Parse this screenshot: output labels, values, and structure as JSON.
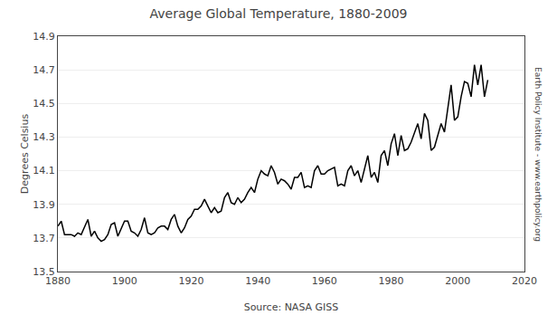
{
  "chart_data": {
    "type": "line",
    "title": "Average Global Temperature, 1880-2009",
    "xlabel": "Source: NASA GISS",
    "ylabel": "Degrees Celsius",
    "annotations": [
      "Earth Policy Institute - www.earthpolicy.org"
    ],
    "color": "#000000",
    "grid": "y",
    "xlim": [
      1880,
      2020
    ],
    "ylim": [
      13.5,
      14.9
    ],
    "xticks": [
      1880,
      1900,
      1920,
      1940,
      1960,
      1980,
      2000,
      2020
    ],
    "yticks": [
      13.5,
      13.7,
      13.9,
      14.1,
      14.3,
      14.5,
      14.7,
      14.9
    ],
    "x": [
      1880,
      1881,
      1882,
      1883,
      1884,
      1885,
      1886,
      1887,
      1888,
      1889,
      1890,
      1891,
      1892,
      1893,
      1894,
      1895,
      1896,
      1897,
      1898,
      1899,
      1900,
      1901,
      1902,
      1903,
      1904,
      1905,
      1906,
      1907,
      1908,
      1909,
      1910,
      1911,
      1912,
      1913,
      1914,
      1915,
      1916,
      1917,
      1918,
      1919,
      1920,
      1921,
      1922,
      1923,
      1924,
      1925,
      1926,
      1927,
      1928,
      1929,
      1930,
      1931,
      1932,
      1933,
      1934,
      1935,
      1936,
      1937,
      1938,
      1939,
      1940,
      1941,
      1942,
      1943,
      1944,
      1945,
      1946,
      1947,
      1948,
      1949,
      1950,
      1951,
      1952,
      1953,
      1954,
      1955,
      1956,
      1957,
      1958,
      1959,
      1960,
      1961,
      1962,
      1963,
      1964,
      1965,
      1966,
      1967,
      1968,
      1969,
      1970,
      1971,
      1972,
      1973,
      1974,
      1975,
      1976,
      1977,
      1978,
      1979,
      1980,
      1981,
      1982,
      1983,
      1984,
      1985,
      1986,
      1987,
      1988,
      1989,
      1990,
      1991,
      1992,
      1993,
      1994,
      1995,
      1996,
      1997,
      1998,
      1999,
      2000,
      2001,
      2002,
      2003,
      2004,
      2005,
      2006,
      2007,
      2008,
      2009
    ],
    "values": [
      13.77,
      13.8,
      13.72,
      13.72,
      13.72,
      13.71,
      13.73,
      13.72,
      13.77,
      13.81,
      13.71,
      13.74,
      13.7,
      13.68,
      13.69,
      13.72,
      13.78,
      13.79,
      13.71,
      13.76,
      13.8,
      13.8,
      13.74,
      13.73,
      13.71,
      13.75,
      13.82,
      13.73,
      13.72,
      13.73,
      13.76,
      13.77,
      13.77,
      13.75,
      13.81,
      13.84,
      13.77,
      13.73,
      13.76,
      13.81,
      13.83,
      13.87,
      13.87,
      13.89,
      13.93,
      13.89,
      13.85,
      13.88,
      13.85,
      13.86,
      13.94,
      13.97,
      13.91,
      13.9,
      13.94,
      13.91,
      13.93,
      13.97,
      14.0,
      13.97,
      14.05,
      14.1,
      14.08,
      14.07,
      14.13,
      14.09,
      14.02,
      14.05,
      14.04,
      14.02,
      13.99,
      14.06,
      14.06,
      14.09,
      14.0,
      14.01,
      14.0,
      14.1,
      14.13,
      14.08,
      14.08,
      14.1,
      14.11,
      14.12,
      14.01,
      14.02,
      14.01,
      14.1,
      14.13,
      14.07,
      14.1,
      14.03,
      14.11,
      14.19,
      14.06,
      14.09,
      14.03,
      14.19,
      14.22,
      14.13,
      14.26,
      14.32,
      14.19,
      14.31,
      14.22,
      14.23,
      14.27,
      14.33,
      14.38,
      14.29,
      14.44,
      14.4,
      14.22,
      14.24,
      14.31,
      14.38,
      14.33,
      14.46,
      14.61,
      14.4,
      14.42,
      14.54,
      14.63,
      14.62,
      14.54,
      14.73,
      14.61,
      14.73,
      14.54,
      14.64
    ]
  }
}
